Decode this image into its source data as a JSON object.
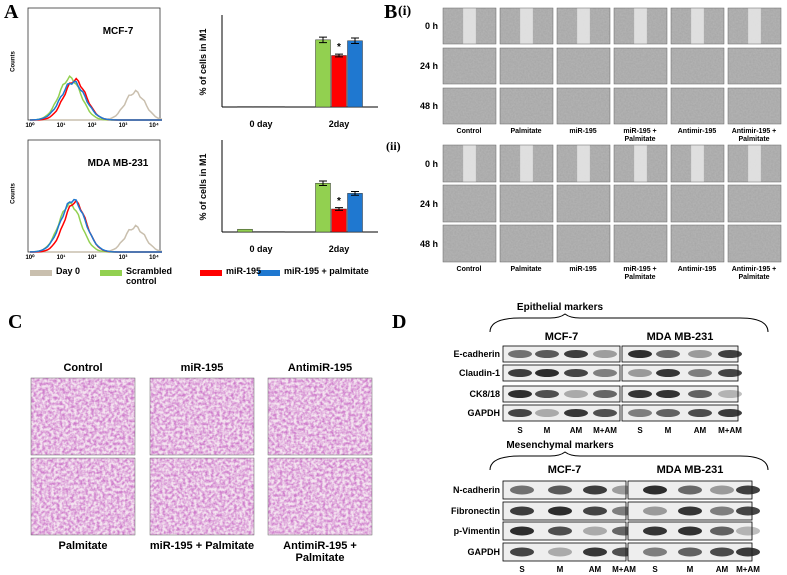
{
  "chart_data": [
    {
      "type": "bar",
      "ylabel": "% of cells in M1",
      "categories": [
        "0 day",
        "2day"
      ],
      "ylim": [
        0,
        100
      ],
      "annotation": "*",
      "series": [
        {
          "name": "Scrambled control",
          "color": "#92d050",
          "values": [
            0.5,
            73
          ],
          "errors": [
            0,
            3
          ]
        },
        {
          "name": "miR-195",
          "color": "#ff0000",
          "values": [
            0.5,
            56
          ],
          "errors": [
            0,
            1.5
          ]
        },
        {
          "name": "miR-195 + palmitate",
          "color": "#1f78d0",
          "values": [
            0.5,
            72
          ],
          "errors": [
            0,
            3
          ]
        }
      ]
    },
    {
      "type": "bar",
      "ylabel": "% of cells in M1",
      "categories": [
        "0 day",
        "2day"
      ],
      "ylim": [
        0,
        100
      ],
      "annotation": "*",
      "series": [
        {
          "name": "Scrambled control",
          "color": "#92d050",
          "values": [
            3,
            53
          ],
          "errors": [
            0,
            2.5
          ]
        },
        {
          "name": "miR-195",
          "color": "#ff0000",
          "values": [
            0.5,
            25
          ],
          "errors": [
            0,
            1.5
          ]
        },
        {
          "name": "miR-195 + palmitate",
          "color": "#1f78d0",
          "values": [
            0.5,
            42
          ],
          "errors": [
            0,
            2
          ]
        }
      ]
    }
  ],
  "panel_a": {
    "label": "A",
    "histograms": [
      {
        "title": "MCF-7"
      },
      {
        "title": "MDA MB-231"
      }
    ],
    "ylabel": "Counts",
    "xticks": [
      "10⁰",
      "10¹",
      "10²",
      "10³",
      "10⁴"
    ],
    "day0": {
      "name": "Day 0",
      "color": "#c9bfae"
    }
  },
  "panel_b": {
    "label": "B",
    "parts": [
      {
        "label": "(i)",
        "rows": [
          "0 h",
          "24 h",
          "48 h"
        ],
        "columns": [
          "Control",
          "Palmitate",
          "miR-195",
          "miR-195 + Palmitate",
          "Antimir-195",
          "Antimir-195 + Palmitate"
        ]
      },
      {
        "label": "(ii)",
        "rows": [
          "0 h",
          "24 h",
          "48 h"
        ],
        "columns": [
          "Control",
          "Palmitate",
          "miR-195",
          "miR-195 + Palmitate",
          "Antimir-195",
          "Antimir-195 + Palmitate"
        ]
      }
    ]
  },
  "panel_c": {
    "label": "C",
    "top": [
      "Control",
      "miR-195",
      "AntimiR-195"
    ],
    "bottom": [
      "Palmitate",
      "miR-195 + Palmitate",
      "AntimiR-195 + Palmitate"
    ]
  },
  "panel_d": {
    "label": "D",
    "blots": [
      {
        "title": "Epithelial markers",
        "groups": [
          "MCF-7",
          "MDA MB-231"
        ],
        "rows": [
          "E-cadherin",
          "Claudin-1",
          "CK8/18",
          "GAPDH"
        ],
        "lanes": [
          "S",
          "M",
          "AM",
          "M+AM",
          "S",
          "M",
          "AM",
          "M+AM"
        ]
      },
      {
        "title": "Mesenchymal markers",
        "groups": [
          "MCF-7",
          "MDA MB-231"
        ],
        "rows": [
          "N-cadherin",
          "Fibronectin",
          "p-Vimentin",
          "GAPDH"
        ],
        "lanes": [
          "S",
          "M",
          "AM",
          "M+AM",
          "S",
          "M",
          "AM",
          "M+AM"
        ]
      }
    ]
  }
}
